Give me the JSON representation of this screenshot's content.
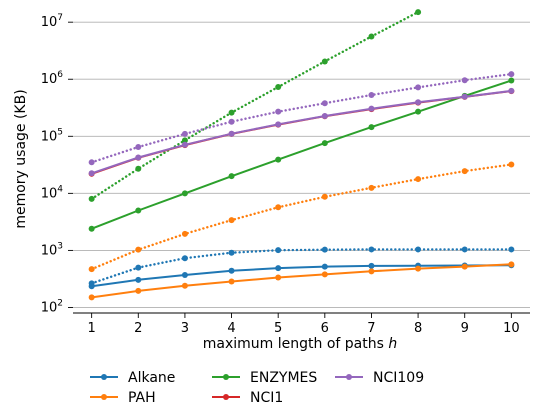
{
  "chart_data": {
    "type": "line",
    "xlabel_prefix": "maximum length of paths ",
    "xlabel_var": "h",
    "ylabel": "memory usage (KB)",
    "y_scale": "log",
    "ylim": [
      80,
      20000000
    ],
    "xlim": [
      0.6,
      10.4
    ],
    "x": [
      1,
      2,
      3,
      4,
      5,
      6,
      7,
      8,
      9,
      10
    ],
    "x_tick_labels": [
      "1",
      "2",
      "3",
      "4",
      "5",
      "6",
      "7",
      "8",
      "9",
      "10"
    ],
    "y_ticks": [
      {
        "value": 100,
        "base": "10",
        "exp": "2"
      },
      {
        "value": 1000,
        "base": "10",
        "exp": "3"
      },
      {
        "value": 10000,
        "base": "10",
        "exp": "4"
      },
      {
        "value": 100000,
        "base": "10",
        "exp": "5"
      },
      {
        "value": 1000000,
        "base": "10",
        "exp": "6"
      },
      {
        "value": 10000000,
        "base": "10",
        "exp": "7"
      }
    ],
    "grid": "horizontal major",
    "legend_position": "bottom",
    "series": [
      {
        "name": "Alkane",
        "color": "#1f77b4",
        "style": "solid",
        "values": [
          235,
          305,
          370,
          440,
          490,
          520,
          535,
          540,
          545,
          550
        ]
      },
      {
        "name": "Alkane",
        "color": "#1f77b4",
        "style": "dotted",
        "in_legend": false,
        "values": [
          265,
          500,
          730,
          910,
          1010,
          1030,
          1040,
          1040,
          1040,
          1040
        ]
      },
      {
        "name": "PAH",
        "color": "#ff7f0e",
        "style": "solid",
        "values": [
          150,
          195,
          240,
          285,
          335,
          380,
          430,
          480,
          520,
          570
        ]
      },
      {
        "name": "PAH",
        "color": "#ff7f0e",
        "style": "dotted",
        "in_legend": false,
        "values": [
          470,
          1030,
          1950,
          3400,
          5700,
          8700,
          12500,
          17800,
          24500,
          32000
        ]
      },
      {
        "name": "ENZYMES",
        "color": "#2ca02c",
        "style": "solid",
        "values": [
          2400,
          5000,
          10000,
          20000,
          39000,
          76000,
          145000,
          270000,
          510000,
          950000
        ]
      },
      {
        "name": "ENZYMES",
        "color": "#2ca02c",
        "style": "dotted",
        "in_legend": false,
        "values": [
          8000,
          27000,
          85000,
          260000,
          730000,
          2050000,
          5600000,
          15000000,
          null,
          null
        ]
      },
      {
        "name": "NCI1",
        "color": "#d62728",
        "style": "solid",
        "values": [
          22000,
          42000,
          70000,
          110000,
          160000,
          225000,
          300000,
          390000,
          490000,
          620000
        ]
      },
      {
        "name": "NCI109",
        "color": "#9467bd",
        "style": "solid",
        "values": [
          22500,
          42500,
          71000,
          111000,
          162000,
          227000,
          305000,
          395000,
          495000,
          625000
        ]
      },
      {
        "name": "NCI109",
        "color": "#9467bd",
        "style": "dotted",
        "in_legend": false,
        "values": [
          35000,
          65000,
          110000,
          180000,
          270000,
          380000,
          530000,
          720000,
          960000,
          1230000
        ]
      }
    ],
    "legend": [
      {
        "label": "Alkane",
        "color": "#1f77b4"
      },
      {
        "label": "PAH",
        "color": "#ff7f0e"
      },
      {
        "label": "ENZYMES",
        "color": "#2ca02c"
      },
      {
        "label": "NCI1",
        "color": "#d62728"
      },
      {
        "label": "NCI109",
        "color": "#9467bd"
      }
    ]
  }
}
